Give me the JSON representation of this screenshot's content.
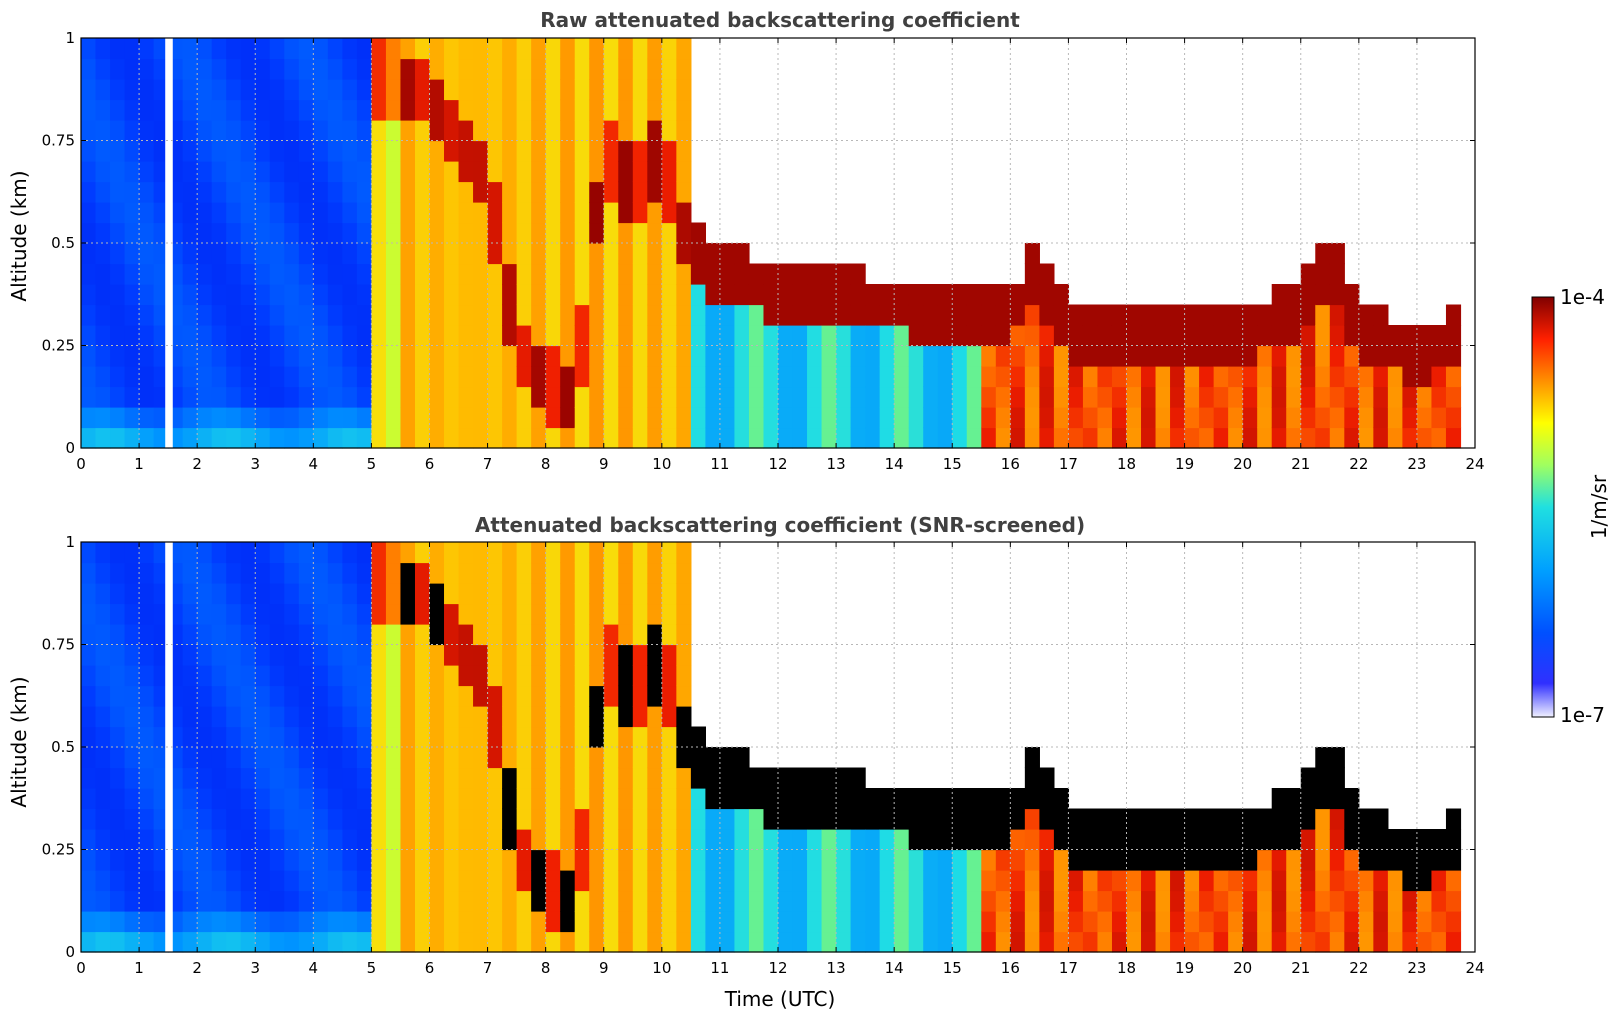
{
  "chart_data": [
    {
      "type": "heatmap",
      "title": "Raw attenuated backscattering coefficient",
      "xlabel": "",
      "ylabel": "Altitude (km)",
      "xlim": [
        0,
        24
      ],
      "ylim": [
        0,
        1
      ],
      "x_ticks": [
        "0",
        "1",
        "2",
        "3",
        "4",
        "5",
        "6",
        "7",
        "8",
        "9",
        "10",
        "11",
        "12",
        "13",
        "14",
        "15",
        "16",
        "17",
        "18",
        "19",
        "20",
        "21",
        "22",
        "23",
        "24"
      ],
      "y_ticks": [
        "0",
        "0.25",
        "0.5",
        "0.75",
        "1"
      ],
      "grid": true,
      "regions": [
        {
          "x": [
            0,
            4.9
          ],
          "y": [
            0,
            1
          ],
          "level": "low (blue)"
        },
        {
          "x": [
            4.9,
            10.5
          ],
          "y": [
            0,
            1
          ],
          "level": "high (yellow-orange), red cloud layer 0.1-0.95 km"
        },
        {
          "x": [
            10.5,
            15.5
          ],
          "y": [
            0.25,
            0.45
          ],
          "level": "max (dark red) layer"
        },
        {
          "x": [
            15.5,
            23.8
          ],
          "y": [
            0,
            0.3
          ],
          "level": "max (dark red / red)"
        }
      ],
      "layer_top_km": {
        "x": [
          0,
          5,
          6,
          7,
          7.5,
          8,
          8.5,
          9,
          9.5,
          10,
          10.5,
          11,
          12,
          13,
          14,
          15,
          16,
          16.4,
          17,
          18,
          19,
          20,
          21,
          21.5,
          22,
          23,
          23.8
        ],
        "y": [
          1,
          1,
          0.95,
          0.75,
          0.35,
          0.25,
          0.2,
          0.82,
          0.72,
          0.8,
          0.55,
          0.5,
          0.45,
          0.43,
          0.42,
          0.4,
          0.38,
          0.5,
          0.36,
          0.34,
          0.33,
          0.35,
          0.4,
          0.52,
          0.36,
          0.3,
          0.35
        ]
      }
    },
    {
      "type": "heatmap",
      "title": "Attenuated backscattering coefficient (SNR-screened)",
      "xlabel": "Time (UTC)",
      "ylabel": "Altitude (km)",
      "xlim": [
        0,
        24
      ],
      "ylim": [
        0,
        1
      ],
      "x_ticks": [
        "0",
        "1",
        "2",
        "3",
        "4",
        "5",
        "6",
        "7",
        "8",
        "9",
        "10",
        "11",
        "12",
        "13",
        "14",
        "15",
        "16",
        "17",
        "18",
        "19",
        "20",
        "21",
        "22",
        "23",
        "24"
      ],
      "y_ticks": [
        "0",
        "0.25",
        "0.5",
        "0.75",
        "1"
      ],
      "grid": true,
      "layer_top_km": {
        "x": [
          0,
          5,
          6,
          7,
          7.5,
          8,
          8.5,
          9,
          9.5,
          10,
          10.5,
          11,
          12,
          13,
          14,
          15,
          16,
          16.4,
          17,
          18,
          19,
          20,
          21,
          21.5,
          22,
          23,
          23.8
        ],
        "y": [
          1,
          1,
          0.95,
          0.75,
          0.35,
          0.25,
          0.2,
          0.82,
          0.72,
          0.8,
          0.55,
          0.5,
          0.45,
          0.43,
          0.42,
          0.4,
          0.38,
          0.5,
          0.36,
          0.34,
          0.33,
          0.35,
          0.4,
          0.52,
          0.36,
          0.3,
          0.35
        ]
      },
      "saturated_black_in_cloud": true
    }
  ],
  "colorbar": {
    "max_label": "1e-4",
    "min_label": "1e-7",
    "label": "1/m/sr",
    "colormap": "jet"
  }
}
